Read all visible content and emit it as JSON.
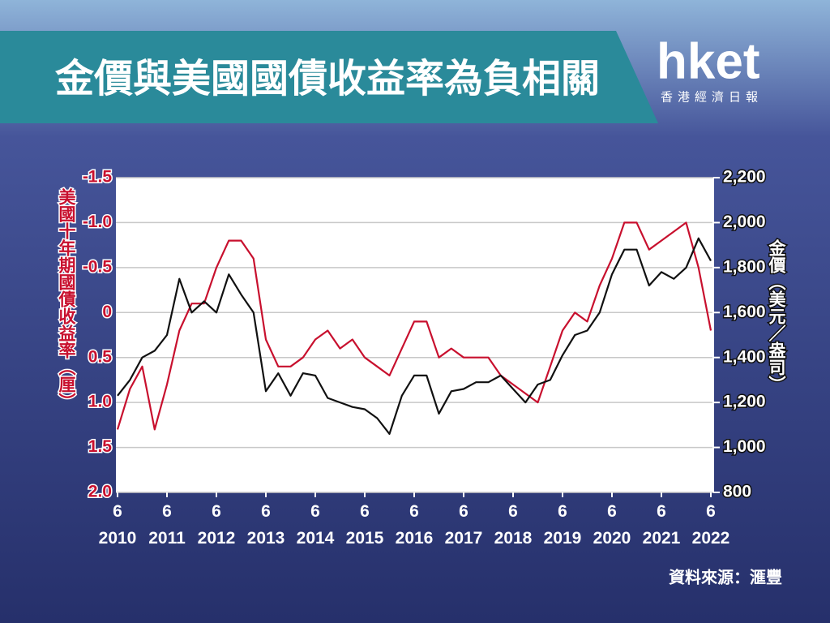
{
  "header": {
    "title": "金價與美國國債收益率為負相關",
    "logo": "hket",
    "logo_subtitle": "香港經濟日報"
  },
  "chart_data": {
    "type": "line",
    "y_label": "美國十年期國債收益率（厘）",
    "y2_label": "金價（美元／盎司）",
    "source": "資料來源：滙豐",
    "x": [
      "2010-06",
      "2010-09",
      "2010-12",
      "2011-03",
      "2011-06",
      "2011-09",
      "2011-12",
      "2012-03",
      "2012-06",
      "2012-09",
      "2012-12",
      "2013-03",
      "2013-06",
      "2013-09",
      "2013-12",
      "2014-03",
      "2014-06",
      "2014-09",
      "2014-12",
      "2015-03",
      "2015-06",
      "2015-09",
      "2015-12",
      "2016-03",
      "2016-06",
      "2016-09",
      "2016-12",
      "2017-03",
      "2017-06",
      "2017-09",
      "2017-12",
      "2018-03",
      "2018-06",
      "2018-09",
      "2018-12",
      "2019-03",
      "2019-06",
      "2019-09",
      "2019-12",
      "2020-03",
      "2020-06",
      "2020-09",
      "2020-12",
      "2021-03",
      "2021-06",
      "2021-09",
      "2021-12",
      "2022-03",
      "2022-06"
    ],
    "xlim": [
      "2010-06",
      "2022-06"
    ],
    "xticks": [
      {
        "value": "2010-06",
        "label": [
          "6",
          "2010"
        ]
      },
      {
        "value": "2011-06",
        "label": [
          "6",
          "2011"
        ]
      },
      {
        "value": "2012-06",
        "label": [
          "6",
          "2012"
        ]
      },
      {
        "value": "2013-06",
        "label": [
          "6",
          "2013"
        ]
      },
      {
        "value": "2014-06",
        "label": [
          "6",
          "2014"
        ]
      },
      {
        "value": "2015-06",
        "label": [
          "6",
          "2015"
        ]
      },
      {
        "value": "2016-06",
        "label": [
          "6",
          "2016"
        ]
      },
      {
        "value": "2017-06",
        "label": [
          "6",
          "2017"
        ]
      },
      {
        "value": "2018-06",
        "label": [
          "6",
          "2018"
        ]
      },
      {
        "value": "2019-06",
        "label": [
          "6",
          "2019"
        ]
      },
      {
        "value": "2020-06",
        "label": [
          "6",
          "2020"
        ]
      },
      {
        "value": "2021-06",
        "label": [
          "6",
          "2021"
        ]
      },
      {
        "value": "2022-06",
        "label": [
          "6",
          "2022"
        ]
      }
    ],
    "ylim": [
      2,
      -1.5
    ],
    "yticks": [
      {
        "value": -1.5,
        "label": "-1.5"
      },
      {
        "value": -1,
        "label": "-1.0"
      },
      -0.5,
      0,
      0.5,
      {
        "value": 1,
        "label": "1.0"
      },
      1.5,
      {
        "value": 2,
        "label": "2.0"
      }
    ],
    "y2lim": [
      800,
      2200
    ],
    "y2ticks": [
      {
        "value": 2200,
        "label": "2,200"
      },
      {
        "value": 2000,
        "label": "2,000"
      },
      {
        "value": 1800,
        "label": "1,800"
      },
      {
        "value": 1600,
        "label": "1,600"
      },
      {
        "value": 1400,
        "label": "1,400"
      },
      {
        "value": 1200,
        "label": "1,200"
      },
      {
        "value": 1000,
        "label": "1,000"
      },
      800
    ],
    "grid": true,
    "series": [
      {
        "color": "#c8102e",
        "axis": "y",
        "values": [
          1.3,
          0.85,
          0.6,
          1.3,
          0.8,
          0.2,
          -0.1,
          -0.1,
          -0.5,
          -0.8,
          -0.8,
          -0.6,
          0.3,
          0.6,
          0.6,
          0.5,
          0.3,
          0.2,
          0.4,
          0.3,
          0.5,
          0.6,
          0.7,
          0.4,
          0.1,
          0.1,
          0.5,
          0.4,
          0.5,
          0.5,
          0.5,
          0.7,
          0.8,
          0.9,
          1.0,
          0.6,
          0.2,
          0.0,
          0.1,
          -0.3,
          -0.6,
          -1.0,
          -1.0,
          -0.7,
          -0.8,
          -0.9,
          -1.0,
          -0.5,
          0.2
        ]
      },
      {
        "color": "#111111",
        "axis": "y2",
        "values": [
          1230,
          1300,
          1400,
          1430,
          1500,
          1750,
          1600,
          1650,
          1600,
          1770,
          1680,
          1600,
          1250,
          1330,
          1230,
          1330,
          1320,
          1220,
          1200,
          1180,
          1170,
          1130,
          1060,
          1230,
          1320,
          1320,
          1150,
          1250,
          1260,
          1290,
          1290,
          1320,
          1260,
          1200,
          1280,
          1300,
          1410,
          1500,
          1520,
          1600,
          1770,
          1880,
          1880,
          1720,
          1780,
          1750,
          1800,
          1930,
          1830
        ]
      }
    ]
  }
}
